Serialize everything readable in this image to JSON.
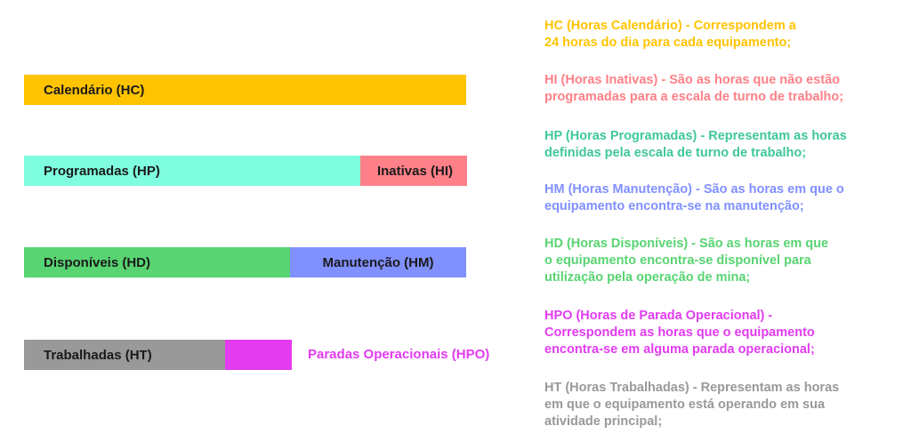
{
  "bars": {
    "calendario": {
      "label": "Calendário (HC)",
      "color": "#FFC300"
    },
    "programadas": {
      "label": "Programadas (HP)",
      "color": "#7FFFDF"
    },
    "inativas": {
      "label": "Inativas (HI)",
      "color": "#FF8088"
    },
    "disponiveis": {
      "label": "Disponíveis (HD)",
      "color": "#58D472"
    },
    "manutencao": {
      "label": "Manutenção (HM)",
      "color": "#8090FF"
    },
    "trabalhadas": {
      "label": "Trabalhadas (HT)",
      "color": "#999999"
    },
    "paradas": {
      "label": "Paradas Operacionais (HPO)",
      "color": "#E23BF0"
    }
  },
  "definitions": [
    {
      "line1": "HC (Horas Calendário) - Correspondem a",
      "line2": "24 horas do dia para cada equipamento;",
      "line3": "",
      "color": "#FFC300"
    },
    {
      "line1": "HI (Horas Inativas) - São as horas que não estão",
      "line2": "programadas para a escala de turno de trabalho;",
      "line3": "",
      "color": "#FF8088"
    },
    {
      "line1": "HP (Horas Programadas) - Representam as horas",
      "line2": "definidas pela escala de turno de trabalho;",
      "line3": "",
      "color": "#3FC79A"
    },
    {
      "line1": "HM (Horas Manutenção) - São as horas em que o",
      "line2": "equipamento encontra-se na manutenção;",
      "line3": "",
      "color": "#8090FF"
    },
    {
      "line1": "HD (Horas Disponíveis) - São as horas em que",
      "line2": "o equipamento encontra-se disponível para",
      "line3": "utilização pela operação de mina;",
      "color": "#58D472"
    },
    {
      "line1": "HPO (Horas de Parada Operacional) -",
      "line2": "Correspondem as horas que o equipamento",
      "line3": "encontra-se em alguma parada operacional;",
      "color": "#E23BF0"
    },
    {
      "line1": "HT (Horas Trabalhadas) - Representam as horas",
      "line2": "em que o equipamento está operando em sua",
      "line3": "atividade principal;",
      "color": "#999999"
    }
  ]
}
